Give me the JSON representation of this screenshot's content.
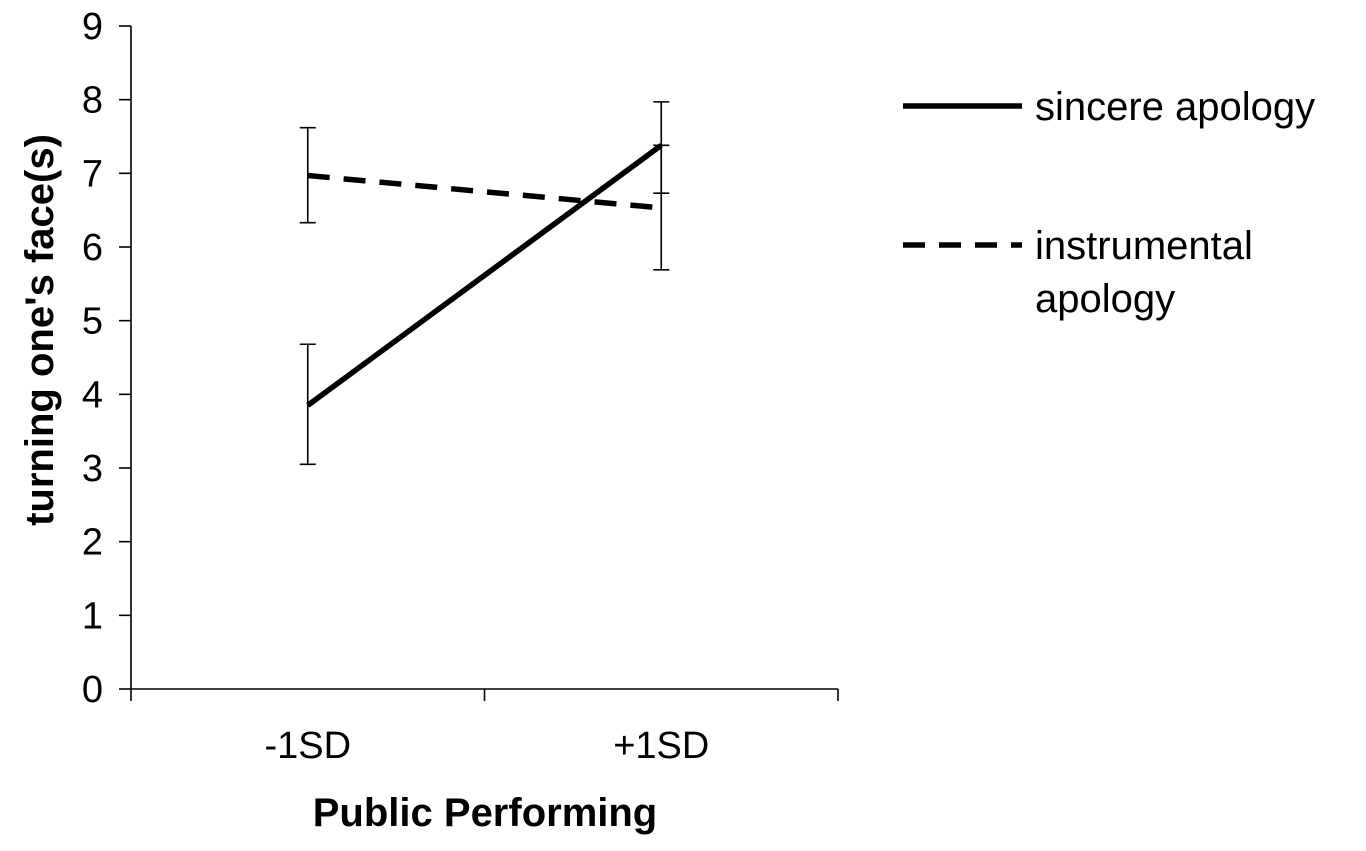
{
  "chart_data": {
    "type": "line",
    "title": "",
    "xlabel": "Public Performing",
    "ylabel": "turning one's face(s)",
    "categories": [
      "-1SD",
      "+1SD"
    ],
    "ylim": [
      0,
      9
    ],
    "yticks": [
      "0",
      "1",
      "2",
      "3",
      "4",
      "5",
      "6",
      "7",
      "8",
      "9"
    ],
    "grid": false,
    "legend_position": "right",
    "series": [
      {
        "name": "sincere apology",
        "style": "solid",
        "color": "#000000",
        "values": [
          3.85,
          7.38
        ],
        "error_low": [
          3.05,
          6.73
        ],
        "error_high": [
          4.68,
          7.97
        ]
      },
      {
        "name": "instrumental apology",
        "style": "dashed",
        "color": "#000000",
        "values": [
          6.97,
          6.53
        ],
        "error_low": [
          6.33,
          5.69
        ],
        "error_high": [
          7.62,
          7.38
        ]
      }
    ]
  }
}
